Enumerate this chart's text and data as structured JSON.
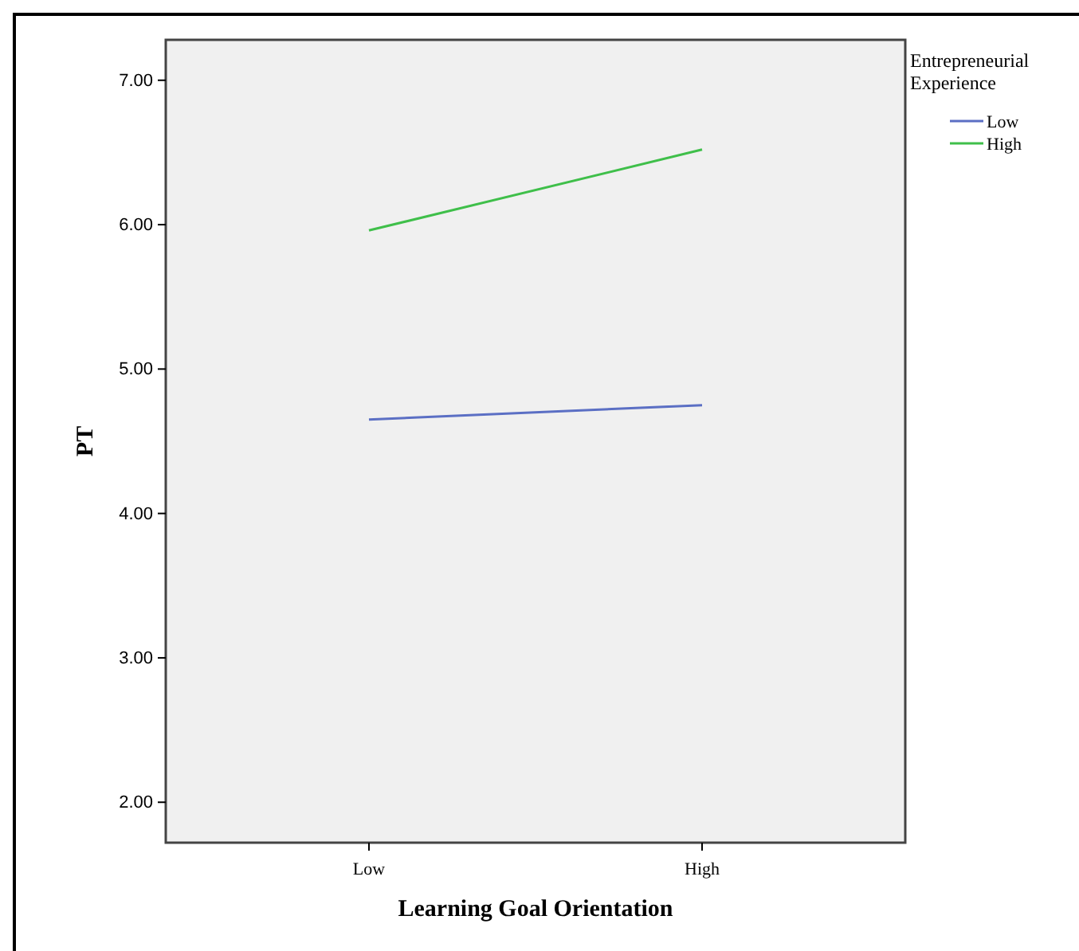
{
  "chart_data": {
    "type": "line",
    "xlabel": "Learning Goal Orientation",
    "ylabel": "PT",
    "legend_title": "Entrepreneurial Experience",
    "categories": [
      "Low",
      "High"
    ],
    "series": [
      {
        "name": "Low",
        "color": "#5b6fc4",
        "values": [
          4.65,
          4.75
        ]
      },
      {
        "name": "High",
        "color": "#3fbf4a",
        "values": [
          5.96,
          6.52
        ]
      }
    ],
    "ylim": [
      1.72,
      7.28
    ],
    "yticks": [
      {
        "value": 2,
        "label": "2.00"
      },
      {
        "value": 3,
        "label": "3.00"
      },
      {
        "value": 4,
        "label": "4.00"
      },
      {
        "value": 5,
        "label": "5.00"
      },
      {
        "value": 6,
        "label": "6.00"
      },
      {
        "value": 7,
        "label": "7.00"
      }
    ],
    "grid": false,
    "legend": "top right",
    "marker": "none",
    "line_style": "solid"
  }
}
